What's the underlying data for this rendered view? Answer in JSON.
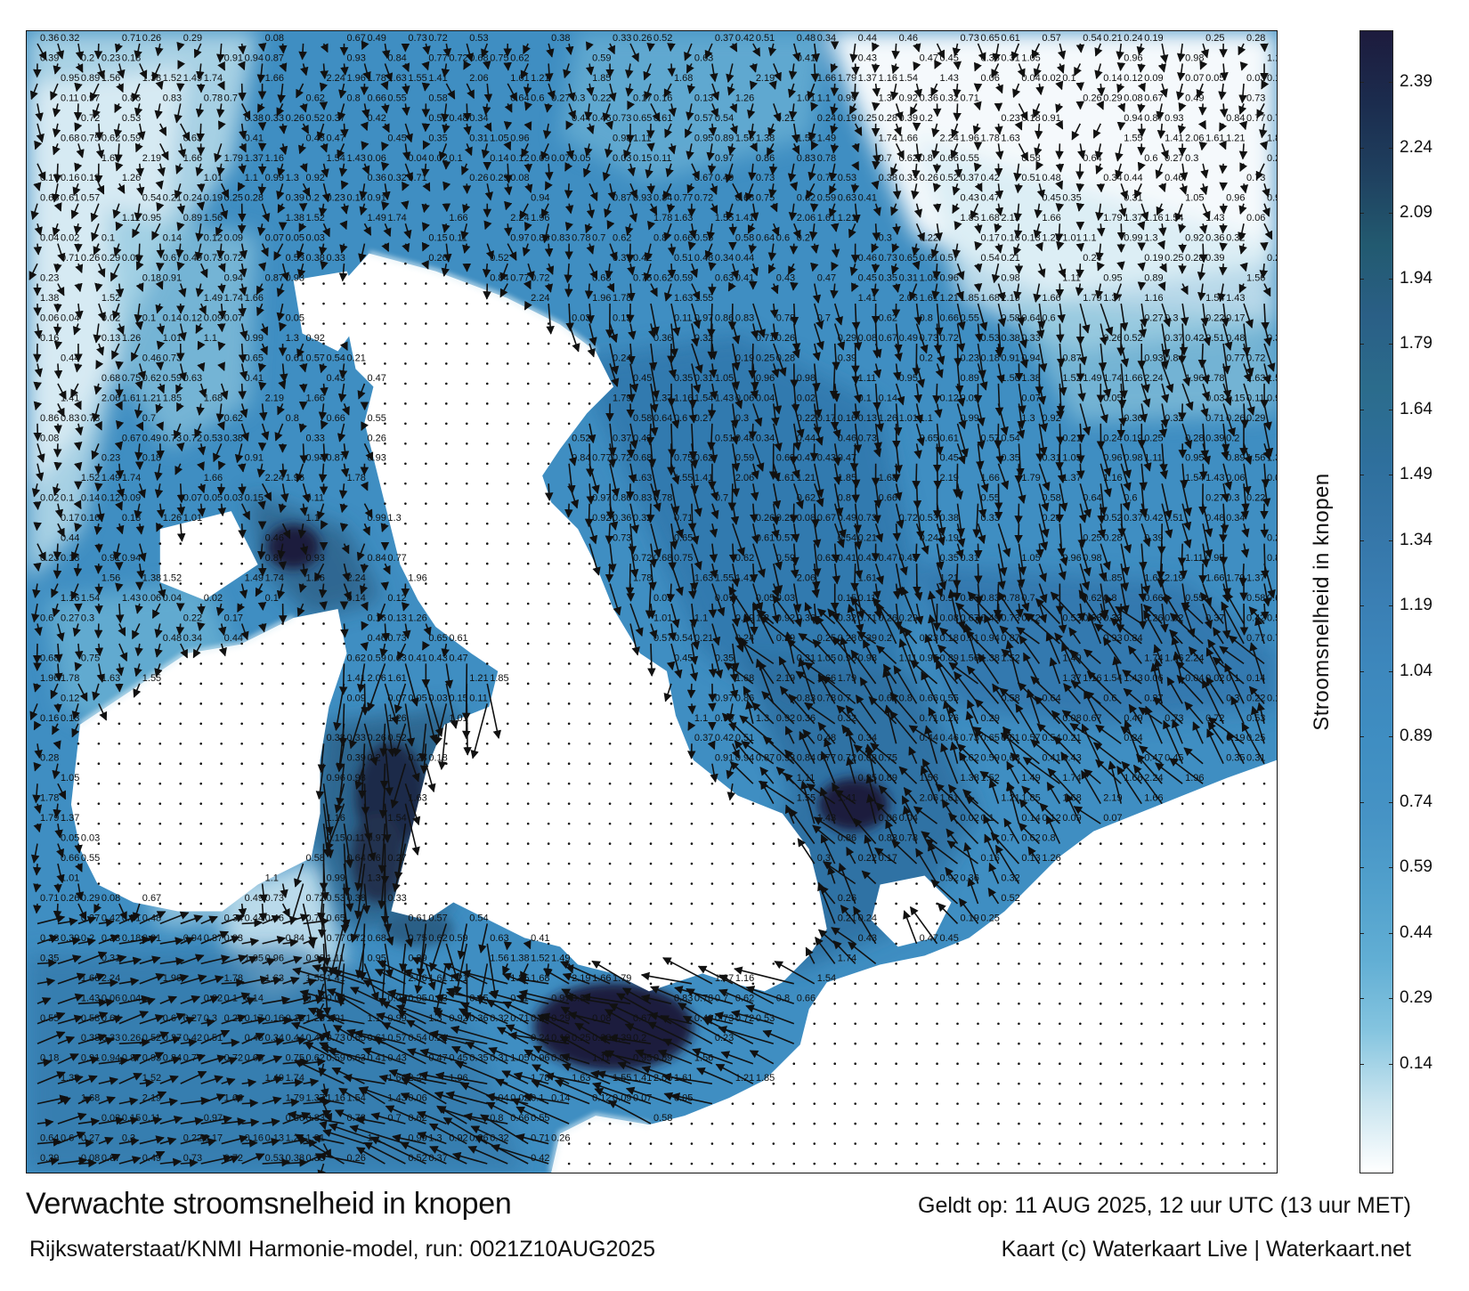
{
  "title": "Verwachte stroomsnelheid in knopen",
  "valid_time": "Geldt op: 11 AUG 2025, 12 uur UTC (13 uur MET)",
  "model_run": "Rijkswaterstaat/KNMI Harmonie-model, run: 0021Z10AUG2025",
  "credit": "Kaart (c) Waterkaart Live | Waterkaart.net",
  "legend": {
    "title": "Stroomsnelheid in knopen",
    "ticks": [
      "2.39",
      "2.24",
      "2.09",
      "1.94",
      "1.79",
      "1.64",
      "1.49",
      "1.34",
      "1.19",
      "1.04",
      "0.89",
      "0.74",
      "0.59",
      "0.44",
      "0.29",
      "0.14"
    ],
    "colors": [
      "#1d1b3d",
      "#1b2c4e",
      "#1f405f",
      "#225a70",
      "#2a5f86",
      "#2b6c8c",
      "#2e6f9c",
      "#3576a8",
      "#3a7fb4",
      "#3d88bd",
      "#3f8ec2",
      "#4693c5",
      "#51a0cc",
      "#61aed4",
      "#84c4df",
      "#c8e4ef",
      "#ffffff"
    ]
  },
  "map_labels": [
    {
      "text": "0.36"
    },
    {
      "text": "0.32"
    },
    {
      "text": "0.71"
    },
    {
      "text": "0.26"
    },
    {
      "text": "0.29"
    },
    {
      "text": "0.08"
    },
    {
      "text": "0.67"
    },
    {
      "text": "0.49"
    },
    {
      "text": "0.73"
    },
    {
      "text": "0.72"
    },
    {
      "text": "0.53"
    },
    {
      "text": "0.38"
    },
    {
      "text": "0.33"
    },
    {
      "text": "0.26"
    },
    {
      "text": "0.52"
    },
    {
      "text": "0.37"
    },
    {
      "text": "0.42"
    },
    {
      "text": "0.51"
    },
    {
      "text": "0.48"
    },
    {
      "text": "0.34"
    },
    {
      "text": "0.44"
    },
    {
      "text": "0.46"
    },
    {
      "text": "0.73"
    },
    {
      "text": "0.65"
    },
    {
      "text": "0.61"
    },
    {
      "text": "0.57"
    },
    {
      "text": "0.54"
    },
    {
      "text": "0.21"
    },
    {
      "text": "0.24"
    },
    {
      "text": "0.19"
    },
    {
      "text": "0.25"
    },
    {
      "text": "0.28"
    },
    {
      "text": "0.39"
    },
    {
      "text": "0.2"
    },
    {
      "text": "0.23"
    },
    {
      "text": "0.18"
    },
    {
      "text": "0.91"
    },
    {
      "text": "0.94"
    },
    {
      "text": "0.87"
    },
    {
      "text": "0.93"
    },
    {
      "text": "0.84"
    },
    {
      "text": "0.77"
    },
    {
      "text": "0.72"
    },
    {
      "text": "0.68"
    },
    {
      "text": "0.75"
    },
    {
      "text": "0.62"
    },
    {
      "text": "0.59"
    },
    {
      "text": "0.63"
    },
    {
      "text": "0.41"
    },
    {
      "text": "0.43"
    },
    {
      "text": "0.47"
    },
    {
      "text": "0.45"
    },
    {
      "text": "0.35"
    },
    {
      "text": "0.31"
    },
    {
      "text": "1.05"
    },
    {
      "text": "0.96"
    },
    {
      "text": "0.98"
    },
    {
      "text": "1.11"
    },
    {
      "text": "0.95"
    },
    {
      "text": "0.89"
    },
    {
      "text": "1.56"
    },
    {
      "text": "1.38"
    },
    {
      "text": "1.52"
    },
    {
      "text": "1.49"
    },
    {
      "text": "1.74"
    },
    {
      "text": "1.66"
    },
    {
      "text": "2.24"
    },
    {
      "text": "1.96"
    },
    {
      "text": "1.78"
    },
    {
      "text": "1.63"
    },
    {
      "text": "1.55"
    },
    {
      "text": "1.41"
    },
    {
      "text": "2.06"
    },
    {
      "text": "1.61"
    },
    {
      "text": "1.21"
    },
    {
      "text": "1.85"
    },
    {
      "text": "1.68"
    },
    {
      "text": "2.19"
    },
    {
      "text": "1.66"
    },
    {
      "text": "1.79"
    },
    {
      "text": "1.37"
    },
    {
      "text": "1.16"
    },
    {
      "text": "1.54"
    },
    {
      "text": "1.43"
    },
    {
      "text": "0.06"
    },
    {
      "text": "0.04"
    },
    {
      "text": "0.02"
    },
    {
      "text": "0.1"
    },
    {
      "text": "0.14"
    },
    {
      "text": "0.12"
    },
    {
      "text": "0.09"
    },
    {
      "text": "0.07"
    },
    {
      "text": "0.05"
    },
    {
      "text": "0.03"
    },
    {
      "text": "0.15"
    },
    {
      "text": "0.11"
    },
    {
      "text": "0.97"
    },
    {
      "text": "0.86"
    },
    {
      "text": "0.83"
    },
    {
      "text": "0.78"
    },
    {
      "text": "0.7"
    },
    {
      "text": "0.62"
    },
    {
      "text": "0.8"
    },
    {
      "text": "0.66"
    },
    {
      "text": "0.55"
    },
    {
      "text": "0.58"
    },
    {
      "text": "0.64"
    },
    {
      "text": "0.6"
    },
    {
      "text": "0.27"
    },
    {
      "text": "0.3"
    },
    {
      "text": "0.22"
    },
    {
      "text": "0.17"
    },
    {
      "text": "0.16"
    },
    {
      "text": "0.13"
    },
    {
      "text": "1.26"
    },
    {
      "text": "1.01"
    },
    {
      "text": "1.1"
    },
    {
      "text": "0.99"
    },
    {
      "text": "1.3"
    },
    {
      "text": "0.92"
    }
  ]
}
